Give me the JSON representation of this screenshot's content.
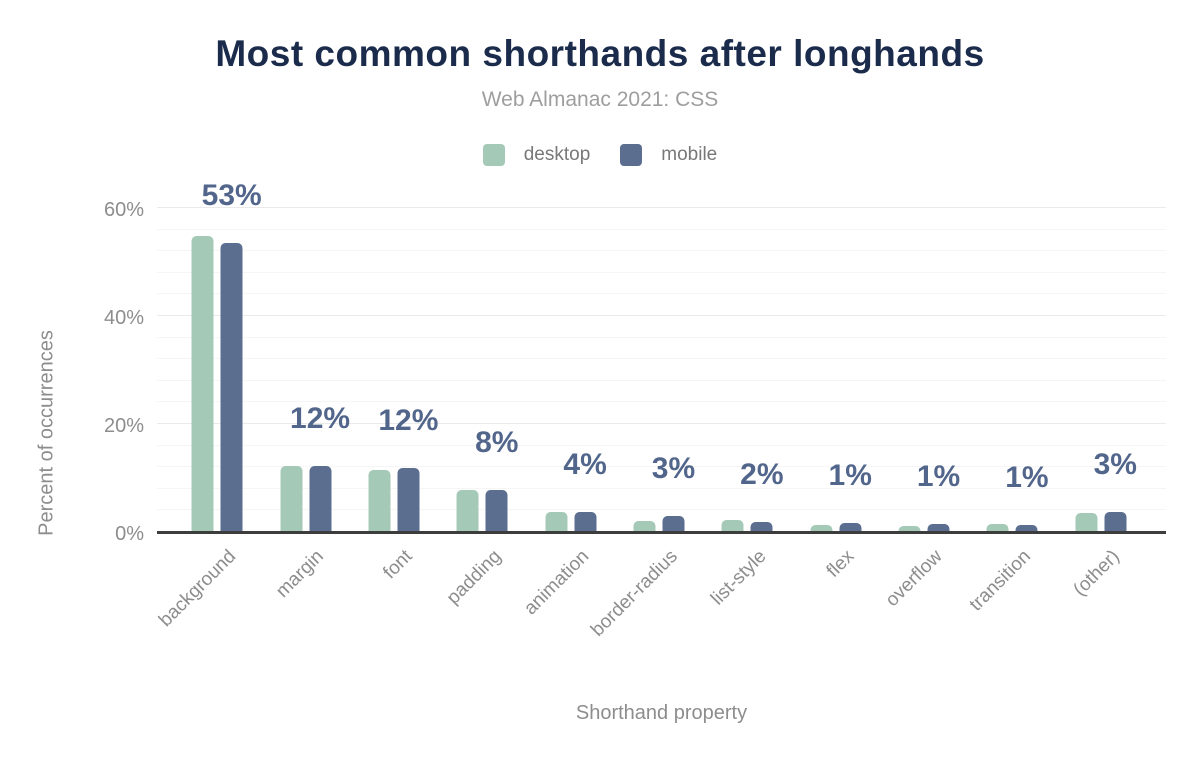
{
  "title": "Most common shorthands after longhands",
  "subtitle": "Web Almanac 2021: CSS",
  "legend": {
    "items": [
      {
        "label": "desktop",
        "color": "#a5c9b7"
      },
      {
        "label": "mobile",
        "color": "#5b6e90"
      }
    ]
  },
  "colors": {
    "title": "#1b2b4b",
    "subtitle": "#9e9e9e",
    "axis_text": "#8d8d8d",
    "value_label": "#52668c",
    "axis_line": "#3d3d3d",
    "desktop_bar": "#a5c9b7",
    "mobile_bar": "#5b6e90"
  },
  "chart_data": {
    "type": "bar",
    "title": "Most common shorthands after longhands",
    "subtitle": "Web Almanac 2021: CSS",
    "xlabel": "Shorthand property",
    "ylabel": "Percent of occurrences",
    "categories": [
      "background",
      "margin",
      "font",
      "padding",
      "animation",
      "border-radius",
      "list-style",
      "flex",
      "overflow",
      "transition",
      "(other)"
    ],
    "series": [
      {
        "name": "desktop",
        "color": "#a5c9b7",
        "values": [
          54.6,
          12.1,
          11.3,
          7.6,
          3.5,
          1.9,
          2.0,
          1.2,
          1.0,
          1.3,
          3.4
        ]
      },
      {
        "name": "mobile",
        "color": "#5b6e90",
        "values": [
          53.3,
          12.0,
          11.7,
          7.6,
          3.6,
          2.8,
          1.6,
          1.4,
          1.3,
          1.2,
          3.5
        ]
      }
    ],
    "data_labels": [
      "53%",
      "12%",
      "12%",
      "8%",
      "4%",
      "3%",
      "2%",
      "1%",
      "1%",
      "1%",
      "3%"
    ],
    "data_labels_series": "mobile",
    "y_ticks": [
      {
        "label": "0%",
        "value": 0
      },
      {
        "label": "20%",
        "value": 20
      },
      {
        "label": "40%",
        "value": 40
      },
      {
        "label": "60%",
        "value": 60
      }
    ],
    "ylim": [
      0,
      60
    ],
    "grid": {
      "horizontal": true,
      "minor_step": 4,
      "major_step": 20
    },
    "legend_position": "top"
  }
}
